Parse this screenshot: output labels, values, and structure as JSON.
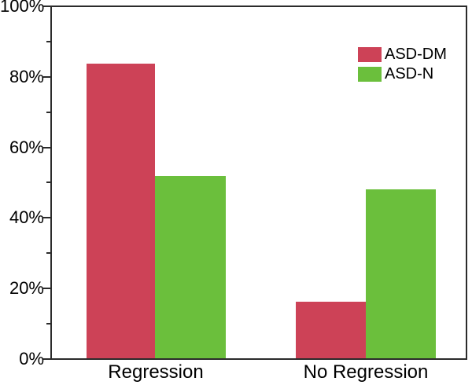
{
  "chart_data": {
    "type": "bar",
    "title": "",
    "xlabel": "",
    "ylabel": "",
    "categories": [
      "Regression",
      "No Regression"
    ],
    "series": [
      {
        "name": "ASD-DM",
        "color": "#cd4257",
        "values": [
          84,
          16
        ]
      },
      {
        "name": "ASD-N",
        "color": "#6bbf3c",
        "values": [
          52,
          48
        ]
      }
    ],
    "ylim": [
      0,
      100
    ],
    "y_axis": {
      "tick_labels": [
        "0%",
        "20%",
        "40%",
        "60%",
        "80%",
        "100%"
      ],
      "major_tick_values": [
        0,
        20,
        40,
        60,
        80,
        100
      ],
      "minor_tick_values": [
        10,
        30,
        50,
        70,
        90
      ],
      "unit": "%"
    },
    "grid": false,
    "legend": {
      "position": "upper-right",
      "entries": [
        "ASD-DM",
        "ASD-N"
      ]
    },
    "colors": {
      "axis": "#2b2b2b",
      "background": "#ffffff",
      "text": "#000000"
    }
  }
}
